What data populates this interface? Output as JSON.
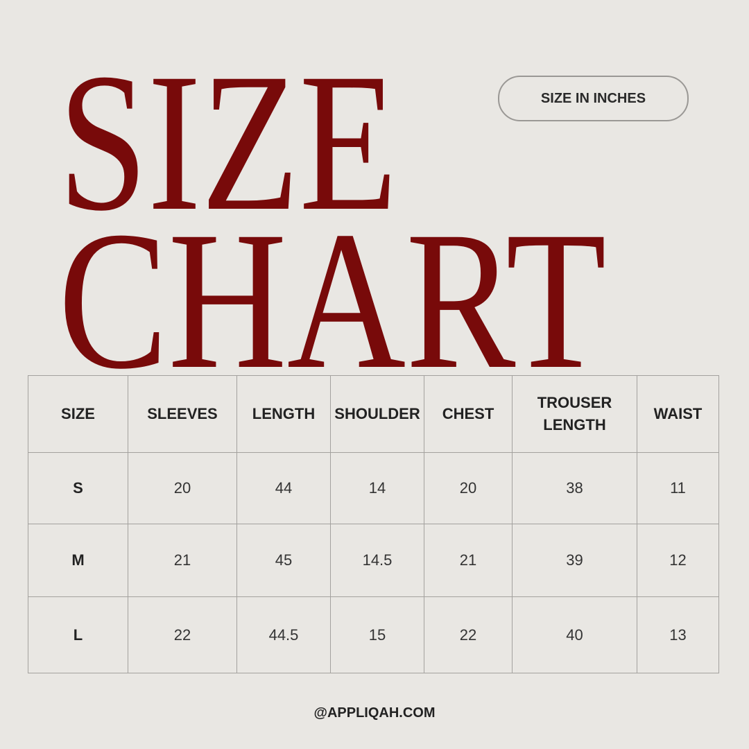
{
  "title": {
    "line1": "SIZE",
    "line2": "CHART",
    "color": "#780a0a"
  },
  "unit_badge": "SIZE IN INCHES",
  "table": {
    "headers": [
      "SIZE",
      "SLEEVES",
      "LENGTH",
      "SHOULDER",
      "CHEST",
      "TROUSER LENGTH",
      "WAIST"
    ],
    "rows": [
      [
        "S",
        "20",
        "44",
        "14",
        "20",
        "38",
        "11"
      ],
      [
        "M",
        "21",
        "45",
        "14.5",
        "21",
        "39",
        "12"
      ],
      [
        "L",
        "22",
        "44.5",
        "15",
        "22",
        "40",
        "13"
      ]
    ]
  },
  "footer": "@APPLIQAH.COM"
}
